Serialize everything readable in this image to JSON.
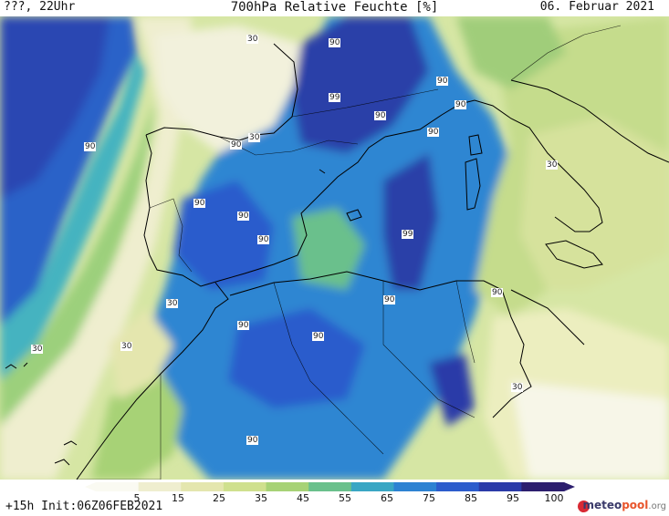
{
  "header": {
    "title": "700hPa Relative Feuchte [%]",
    "left": "???, 22Uhr",
    "right": "06. Februar 2021"
  },
  "footer": {
    "init": "+15h Init:06Z06FEB2021",
    "brand_main": "meteo",
    "brand_accent": "pool",
    "brand_suffix": ".org"
  },
  "legend": {
    "ticks": [
      "5",
      "15",
      "25",
      "35",
      "45",
      "55",
      "65",
      "75",
      "85",
      "95",
      "100"
    ],
    "colors": [
      "#fafaf2",
      "#efeecf",
      "#e4e6ae",
      "#cfe08e",
      "#a7d276",
      "#6ac08c",
      "#39a6c4",
      "#2d82d2",
      "#2c5ccc",
      "#2a3aa8",
      "#2c1e6e"
    ]
  },
  "contour_labels": [
    "30",
    "90",
    "90",
    "99",
    "90",
    "90",
    "90",
    "90",
    "90",
    "30",
    "90",
    "90",
    "90",
    "99",
    "30",
    "90",
    "30",
    "90",
    "90",
    "90",
    "30",
    "30",
    "30",
    "90"
  ]
}
